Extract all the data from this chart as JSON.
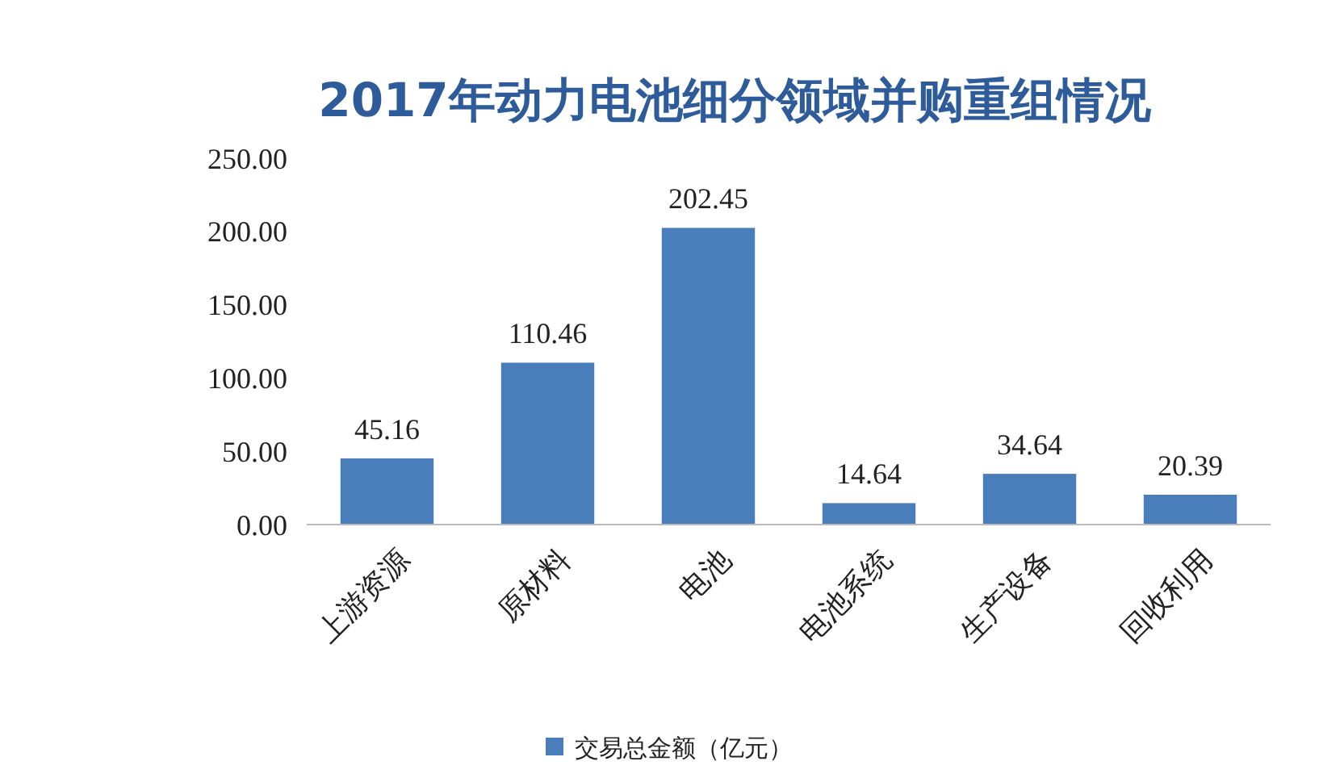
{
  "chart_data": {
    "type": "bar",
    "title": "2017年动力电池细分领域并购重组情况",
    "categories": [
      "上游资源",
      "原材料",
      "电池",
      "电池系统",
      "生产设备",
      "回收利用"
    ],
    "series": [
      {
        "name": "交易总金额（亿元）",
        "color": "#4a7ebb",
        "values": [
          45.16,
          110.46,
          202.45,
          14.64,
          34.64,
          20.39
        ]
      }
    ],
    "ylim": [
      0,
      250
    ],
    "yticks": [
      {
        "value": 0,
        "label": "0.00"
      },
      {
        "value": 50,
        "label": "50.00"
      },
      {
        "value": 100,
        "label": "100.00"
      },
      {
        "value": 150,
        "label": "150.00"
      },
      {
        "value": 200,
        "label": "200.00"
      },
      {
        "value": 250,
        "label": "250.00"
      }
    ],
    "data_labels": true,
    "grid": false,
    "legend": "bottom"
  }
}
